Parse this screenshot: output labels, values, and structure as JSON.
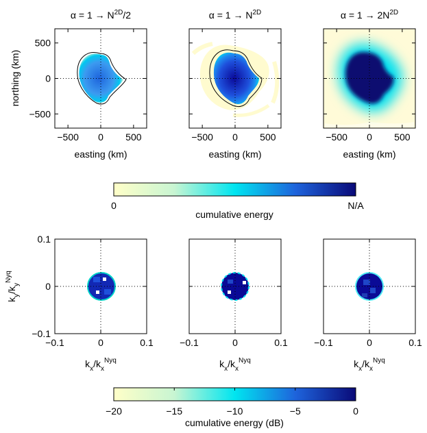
{
  "figure": {
    "top_row": {
      "titles": [
        {
          "base": "α = 1 → N",
          "sup": "2D",
          "suffix": "/2"
        },
        {
          "base": "α = 1 → N",
          "sup": "2D",
          "suffix": ""
        },
        {
          "base": "α = 1 → 2N",
          "sup": "2D",
          "suffix": ""
        }
      ],
      "xlabel": "easting (km)",
      "ylabel": "northing (km)"
    },
    "bottom_row": {
      "xlabel": {
        "base": "k",
        "sub1": "x",
        "mid": "/k",
        "sub2": "x",
        "sup2": "Nyq"
      },
      "ylabel": {
        "base": "k",
        "sub1": "y",
        "mid": "/k",
        "sub2": "y",
        "sup2": "Nyq"
      }
    },
    "colorbar_top": {
      "label": "cumulative energy",
      "ticks": [
        "0",
        "N/A"
      ]
    },
    "colorbar_bottom": {
      "label": "cumulative energy (dB)",
      "ticks": [
        "−20",
        "−15",
        "−10",
        "−5",
        "0"
      ]
    }
  },
  "chart_data": [
    {
      "type": "heatmap",
      "panel": "top-1",
      "title": "α = 1 → N^2D/2",
      "xlabel": "easting (km)",
      "ylabel": "northing (km)",
      "xlim": [
        -700,
        700
      ],
      "ylim": [
        -700,
        700
      ],
      "xticks": [
        -500,
        0,
        500
      ],
      "yticks": [
        500,
        0,
        -500
      ],
      "region": "heart-shaped area concentrated near origin",
      "contour": true
    },
    {
      "type": "heatmap",
      "panel": "top-2",
      "title": "α = 1 → N^2D",
      "xlabel": "easting (km)",
      "ylabel": "",
      "xlim": [
        -700,
        700
      ],
      "ylim": [
        -700,
        700
      ],
      "xticks": [
        -500,
        0,
        500
      ],
      "contour": true
    },
    {
      "type": "heatmap",
      "panel": "top-3",
      "title": "α = 1 → 2N^2D",
      "xlabel": "easting (km)",
      "ylabel": "",
      "xlim": [
        -700,
        700
      ],
      "ylim": [
        -700,
        700
      ],
      "xticks": [
        -500,
        0,
        500
      ],
      "contour": false
    },
    {
      "type": "heatmap",
      "panel": "bottom-1",
      "xlabel": "k_x/k_x^Nyq",
      "ylabel": "k_y/k_y^Nyq",
      "xlim": [
        -0.1,
        0.1
      ],
      "ylim": [
        -0.1,
        0.1
      ],
      "xticks": [
        -0.1,
        0,
        0.1
      ],
      "yticks": [
        0.1,
        0,
        -0.1
      ],
      "disk_radius": 0.03
    },
    {
      "type": "heatmap",
      "panel": "bottom-2",
      "xlabel": "k_x/k_x^Nyq",
      "xlim": [
        -0.1,
        0.1
      ],
      "ylim": [
        -0.1,
        0.1
      ],
      "xticks": [
        -0.1,
        0,
        0.1
      ],
      "disk_radius": 0.03
    },
    {
      "type": "heatmap",
      "panel": "bottom-3",
      "xlabel": "k_x/k_x^Nyq",
      "xlim": [
        -0.1,
        0.1
      ],
      "ylim": [
        -0.1,
        0.1
      ],
      "xticks": [
        -0.1,
        0,
        0.1
      ],
      "disk_radius": 0.03
    }
  ],
  "colors": {
    "low": "#FFFFC8",
    "mid": "#00E5F0",
    "high": "#0A0A78",
    "contour": "#000000"
  }
}
